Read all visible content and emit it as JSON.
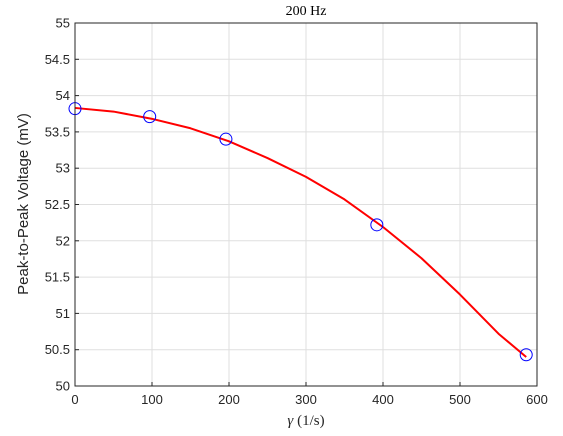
{
  "chart_data": {
    "type": "scatter",
    "title": "200 Hz",
    "xlabel_symbol": "γ",
    "xlabel_unit": " (1/s)",
    "ylabel": "Peak-to-Peak Voltage (mV)",
    "xlim": [
      0,
      600
    ],
    "ylim": [
      50,
      55
    ],
    "xticks": [
      "0",
      "100",
      "200",
      "300",
      "400",
      "500",
      "600"
    ],
    "yticks": [
      "50",
      "50.5",
      "51",
      "51.5",
      "52",
      "52.5",
      "53",
      "53.5",
      "54",
      "54.5",
      "55"
    ],
    "grid": true,
    "series": [
      {
        "kind": "markers",
        "marker": "open-circle",
        "color": "#0000ff",
        "points": [
          {
            "x": 0,
            "y": 53.82
          },
          {
            "x": 97,
            "y": 53.71
          },
          {
            "x": 196,
            "y": 53.4
          },
          {
            "x": 392,
            "y": 52.22
          },
          {
            "x": 586,
            "y": 50.43
          }
        ]
      },
      {
        "kind": "fit-curve",
        "color": "#ff0000",
        "points": [
          {
            "x": 0,
            "y": 53.83
          },
          {
            "x": 50,
            "y": 53.78
          },
          {
            "x": 100,
            "y": 53.68
          },
          {
            "x": 150,
            "y": 53.55
          },
          {
            "x": 200,
            "y": 53.37
          },
          {
            "x": 250,
            "y": 53.14
          },
          {
            "x": 300,
            "y": 52.88
          },
          {
            "x": 350,
            "y": 52.57
          },
          {
            "x": 400,
            "y": 52.19
          },
          {
            "x": 450,
            "y": 51.76
          },
          {
            "x": 500,
            "y": 51.26
          },
          {
            "x": 550,
            "y": 50.72
          },
          {
            "x": 586,
            "y": 50.4
          }
        ]
      }
    ]
  }
}
